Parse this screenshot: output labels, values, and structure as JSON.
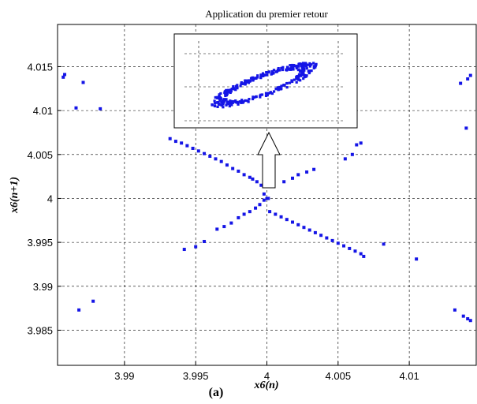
{
  "chart_data": {
    "type": "scatter",
    "title": "Application du premier retour",
    "xlabel": "x6(n)",
    "ylabel": "x6(n+1)",
    "panel_label": "(a)",
    "xlim": [
      3.9853,
      4.0147
    ],
    "ylim": [
      3.981,
      4.0198
    ],
    "x_ticks": [
      3.99,
      3.995,
      4,
      4.005,
      4.01
    ],
    "x_tick_labels": [
      "3.99",
      "3.995",
      "4",
      "4.005",
      "4.01"
    ],
    "y_ticks": [
      3.985,
      3.99,
      3.995,
      4,
      4.005,
      4.01,
      4.015
    ],
    "y_tick_labels": [
      "3.985",
      "3.99",
      "3.995",
      "4",
      "4.005",
      "4.01",
      "4.015"
    ],
    "grid": true,
    "marker_color": "#1515e6",
    "series": [
      {
        "points": [
          [
            3.9932,
            4.0068
          ],
          [
            3.9936,
            4.0065
          ],
          [
            3.994,
            4.0063
          ],
          [
            3.9944,
            4.006
          ],
          [
            3.9948,
            4.0057
          ],
          [
            3.9952,
            4.0054
          ],
          [
            3.9956,
            4.0051
          ],
          [
            3.996,
            4.0048
          ],
          [
            3.9964,
            4.0045
          ],
          [
            3.9968,
            4.0042
          ],
          [
            3.9972,
            4.0038
          ],
          [
            3.9976,
            4.0034
          ],
          [
            3.998,
            4.0031
          ],
          [
            3.9984,
            4.0027
          ],
          [
            3.9988,
            4.0024
          ],
          [
            3.999,
            4.0022
          ],
          [
            3.9993,
            4.0019
          ],
          [
            3.9996,
            4.0015
          ],
          [
            3.9998,
            4.0005
          ],
          [
            3.9942,
            3.9942
          ],
          [
            3.995,
            3.9945
          ],
          [
            3.9956,
            3.9951
          ],
          [
            3.9965,
            3.9965
          ],
          [
            3.997,
            3.9968
          ],
          [
            3.9975,
            3.9972
          ],
          [
            3.998,
            3.9978
          ],
          [
            3.9984,
            3.9982
          ],
          [
            3.9988,
            3.9985
          ],
          [
            3.9992,
            3.9989
          ],
          [
            3.9995,
            3.9993
          ],
          [
            3.9998,
            3.9998
          ],
          [
            4.0,
            4.0
          ],
          [
            4.0001,
            4.0
          ],
          [
            4.0002,
            3.9985
          ],
          [
            4.0006,
            3.9982
          ],
          [
            4.001,
            3.9979
          ],
          [
            4.0014,
            3.9976
          ],
          [
            4.0018,
            3.9973
          ],
          [
            4.0022,
            3.997
          ],
          [
            4.0026,
            3.9967
          ],
          [
            4.003,
            3.9964
          ],
          [
            4.0034,
            3.9961
          ],
          [
            4.0038,
            3.9958
          ],
          [
            4.0042,
            3.9955
          ],
          [
            4.0046,
            3.9952
          ],
          [
            4.005,
            3.9949
          ],
          [
            4.0054,
            3.9946
          ],
          [
            4.0058,
            3.9943
          ],
          [
            4.0062,
            3.994
          ],
          [
            4.0066,
            3.9937
          ],
          [
            4.0068,
            3.9934
          ],
          [
            4.0012,
            4.0019
          ],
          [
            4.0018,
            4.0023
          ],
          [
            4.0022,
            4.0027
          ],
          [
            4.0028,
            4.003
          ],
          [
            4.0033,
            4.0033
          ],
          [
            4.0055,
            4.0045
          ],
          [
            4.006,
            4.005
          ],
          [
            4.0063,
            4.0061
          ],
          [
            4.0066,
            4.0063
          ],
          [
            4.0082,
            3.9948
          ],
          [
            4.0105,
            3.9931
          ],
          [
            3.9857,
            4.0138
          ],
          [
            3.9858,
            4.0141
          ],
          [
            3.9866,
            4.0103
          ],
          [
            3.9871,
            4.0132
          ],
          [
            3.9883,
            4.0102
          ],
          [
            3.9868,
            3.9873
          ],
          [
            3.9878,
            3.9883
          ],
          [
            4.0132,
            3.9873
          ],
          [
            4.0138,
            3.9866
          ],
          [
            4.0141,
            3.9863
          ],
          [
            4.0143,
            3.9861
          ],
          [
            4.0136,
            4.0131
          ],
          [
            4.0141,
            4.0136
          ],
          [
            4.0143,
            4.014
          ],
          [
            4.014,
            4.008
          ]
        ]
      }
    ]
  },
  "inset": {
    "cloud_color": "#1515e6"
  }
}
